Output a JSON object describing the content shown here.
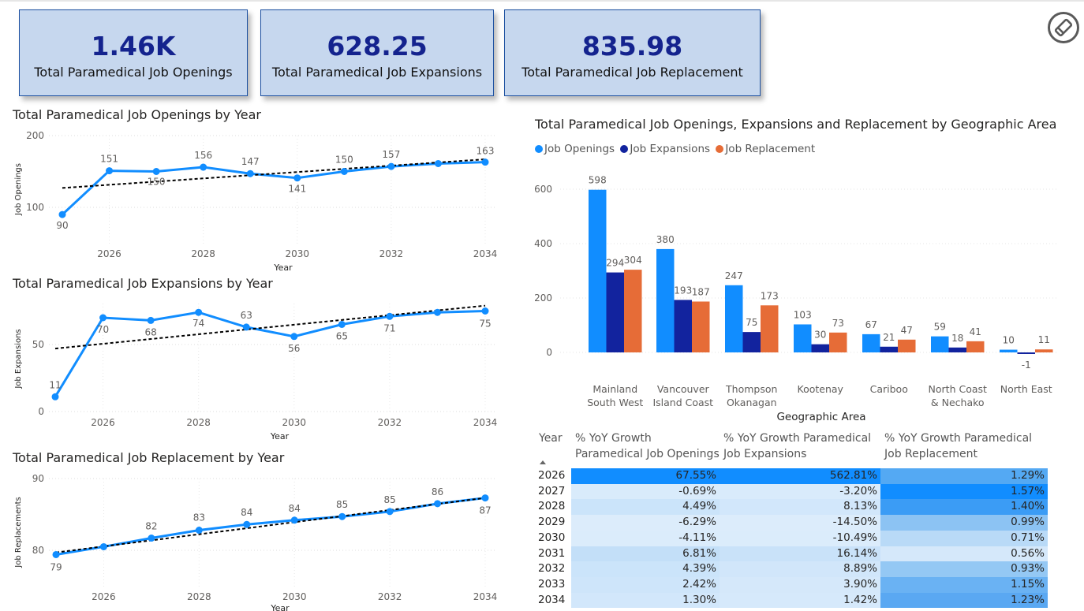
{
  "kpis": [
    {
      "value": "1.46K",
      "label": "Total Paramedical Job Openings"
    },
    {
      "value": "628.25",
      "label": "Total Paramedical Job Expansions"
    },
    {
      "value": "835.98",
      "label": "Total Paramedical Job Replacement"
    }
  ],
  "icons": {
    "edit": "pencil-edit-icon"
  },
  "charts": {
    "openings": {
      "title": "Total Paramedical Job Openings by Year",
      "ylabel": "Job Openings",
      "xlabel": "Year"
    },
    "expansions": {
      "title": "Total Paramedical Job Expansions by Year",
      "ylabel": "Job Expansions",
      "xlabel": "Year"
    },
    "replacement": {
      "title": "Total Paramedical Job Replacement by Year",
      "ylabel": "Job Replacements",
      "xlabel": "Year"
    },
    "geo": {
      "title": "Total Paramedical Job Openings, Expansions and Replacement by Geographic Area",
      "xlabel": "Geographic Area"
    }
  },
  "colors": {
    "line": "#118dff",
    "trend": "#000000",
    "openings": "#118dff",
    "expansions": "#12239e",
    "replacement": "#e66c37",
    "kpi_bg": "#c6d7ee",
    "kpi_text": "#14238e"
  },
  "chart_data": [
    {
      "type": "line",
      "title": "Total Paramedical Job Openings by Year",
      "xlabel": "Year",
      "ylabel": "Job Openings",
      "x": [
        2025,
        2026,
        2027,
        2028,
        2029,
        2030,
        2031,
        2032,
        2033,
        2034
      ],
      "values": [
        90,
        151,
        150,
        156,
        147,
        141,
        150,
        157,
        161,
        163
      ],
      "data_labels": [
        {
          "index": 0,
          "text": "90"
        },
        {
          "index": 1,
          "text": "151"
        },
        {
          "index": 2,
          "text": "150"
        },
        {
          "index": 3,
          "text": "156"
        },
        {
          "index": 4,
          "text": "147"
        },
        {
          "index": 5,
          "text": "141"
        },
        {
          "index": 6,
          "text": "150"
        },
        {
          "index": 7,
          "text": "157"
        },
        {
          "index": 9,
          "text": "163"
        }
      ],
      "trend": [
        127,
        167
      ],
      "xticks": [
        "2026",
        "2028",
        "2030",
        "2032",
        "2034"
      ],
      "yticks": [
        "100",
        "200"
      ],
      "ylim": [
        80,
        200
      ],
      "grid": true
    },
    {
      "type": "line",
      "title": "Total Paramedical Job Expansions by Year",
      "xlabel": "Year",
      "ylabel": "Job Expansions",
      "x": [
        2025,
        2026,
        2027,
        2028,
        2029,
        2030,
        2031,
        2032,
        2033,
        2034
      ],
      "values": [
        11,
        70,
        68,
        74,
        63,
        56,
        65,
        71,
        74,
        75
      ],
      "data_labels": [
        {
          "index": 0,
          "text": "11"
        },
        {
          "index": 1,
          "text": "70"
        },
        {
          "index": 2,
          "text": "68"
        },
        {
          "index": 3,
          "text": "74"
        },
        {
          "index": 4,
          "text": "63"
        },
        {
          "index": 5,
          "text": "56"
        },
        {
          "index": 6,
          "text": "65"
        },
        {
          "index": 7,
          "text": "71"
        },
        {
          "index": 9,
          "text": "75"
        }
      ],
      "trend": [
        47,
        79
      ],
      "xticks": [
        "2026",
        "2028",
        "2030",
        "2032",
        "2034"
      ],
      "yticks": [
        "0",
        "50"
      ],
      "ylim": [
        0,
        86
      ],
      "grid": true
    },
    {
      "type": "line",
      "title": "Total Paramedical Job Replacement by Year",
      "xlabel": "Year",
      "ylabel": "Job Replacements",
      "x": [
        2025,
        2026,
        2027,
        2028,
        2029,
        2030,
        2031,
        2032,
        2033,
        2034
      ],
      "values": [
        79.4,
        80.5,
        81.7,
        82.8,
        83.6,
        84.2,
        84.7,
        85.4,
        86.5,
        87.3
      ],
      "data_labels": [
        {
          "index": 0,
          "text": "79"
        },
        {
          "index": 2,
          "text": "82"
        },
        {
          "index": 3,
          "text": "83"
        },
        {
          "index": 4,
          "text": "84"
        },
        {
          "index": 5,
          "text": "84"
        },
        {
          "index": 6,
          "text": "85"
        },
        {
          "index": 7,
          "text": "85"
        },
        {
          "index": 8,
          "text": "86"
        },
        {
          "index": 9,
          "text": "87"
        }
      ],
      "trend": [
        79.7,
        87.3
      ],
      "xticks": [
        "2026",
        "2028",
        "2030",
        "2032",
        "2034"
      ],
      "yticks": [
        "80",
        "90"
      ],
      "ylim": [
        78,
        90
      ],
      "grid": true
    },
    {
      "type": "bar",
      "title": "Total Paramedical Job Openings, Expansions and Replacement by Geographic Area",
      "xlabel": "Geographic Area",
      "ylabel": "",
      "categories": [
        [
          "Mainland",
          "South West"
        ],
        [
          "Vancouver",
          "Island Coast"
        ],
        [
          "Thompson",
          "Okanagan"
        ],
        [
          "Kootenay"
        ],
        [
          "Cariboo"
        ],
        [
          "North Coast",
          "& Nechako"
        ],
        [
          "North East"
        ]
      ],
      "series": [
        {
          "name": "Job Openings",
          "values": [
            598,
            380,
            247,
            103,
            67,
            59,
            10
          ]
        },
        {
          "name": "Job Expansions",
          "values": [
            294,
            193,
            75,
            30,
            21,
            18,
            -1
          ]
        },
        {
          "name": "Job Replacement",
          "values": [
            304,
            187,
            173,
            73,
            47,
            41,
            11
          ]
        }
      ],
      "yticks": [
        "0",
        "200",
        "400",
        "600"
      ],
      "ylim": [
        -20,
        640
      ],
      "legend": "top-left"
    }
  ],
  "matrix": {
    "headers": {
      "year": "Year",
      "c1": [
        "% YoY Growth",
        "Paramedical Job Openings"
      ],
      "c2": [
        "% YoY Growth Paramedical",
        "Job Expansions"
      ],
      "c3": [
        "% YoY Growth Paramedical",
        "Job Replacement"
      ]
    },
    "rows": [
      {
        "year": "2026",
        "c1": "67.55%",
        "c2": "562.81%",
        "c3": "1.29%"
      },
      {
        "year": "2027",
        "c1": "-0.69%",
        "c2": "-3.20%",
        "c3": "1.57%"
      },
      {
        "year": "2028",
        "c1": "4.49%",
        "c2": "8.13%",
        "c3": "1.40%"
      },
      {
        "year": "2029",
        "c1": "-6.29%",
        "c2": "-14.50%",
        "c3": "0.99%"
      },
      {
        "year": "2030",
        "c1": "-4.11%",
        "c2": "-10.49%",
        "c3": "0.71%"
      },
      {
        "year": "2031",
        "c1": "6.81%",
        "c2": "16.14%",
        "c3": "0.56%"
      },
      {
        "year": "2032",
        "c1": "4.39%",
        "c2": "8.89%",
        "c3": "0.93%"
      },
      {
        "year": "2033",
        "c1": "2.42%",
        "c2": "3.90%",
        "c3": "1.15%"
      },
      {
        "year": "2034",
        "c1": "1.30%",
        "c2": "1.42%",
        "c3": "1.23%"
      }
    ],
    "row_colors": [
      [
        "#118dff",
        "#118dff",
        "#54a9f3"
      ],
      [
        "#d9ebfb",
        "#d9ebfb",
        "#118dff"
      ],
      [
        "#cbe4fa",
        "#d2e7fb",
        "#3b9cf5"
      ],
      [
        "#dcecfb",
        "#dcecfb",
        "#8cc3f3"
      ],
      [
        "#dbecfb",
        "#dbecfb",
        "#b9daf7"
      ],
      [
        "#c3dff8",
        "#c9e2f9",
        "#d5e8fa"
      ],
      [
        "#cbe4fa",
        "#d1e6fa",
        "#94c8f4"
      ],
      [
        "#cee5fa",
        "#d5e8fa",
        "#6ab2f3"
      ],
      [
        "#d2e7fb",
        "#d6e9fb",
        "#5aa8f2"
      ]
    ]
  }
}
